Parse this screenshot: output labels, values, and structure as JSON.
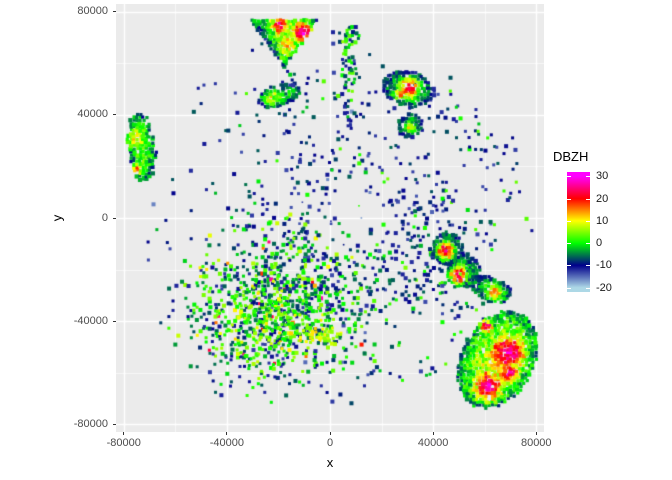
{
  "figure": {
    "bg": "#FFFFFF"
  },
  "panel": {
    "bg": "#EBEBEB",
    "grid_color": "#FFFFFF",
    "tick_text_color": "#4D4D4D",
    "title_text_color": "#000000"
  },
  "chart_data": {
    "type": "heatmap",
    "variable": "DBZH",
    "title": "",
    "xlabel": "x",
    "ylabel": "y",
    "xlim": [
      -83000,
      83000
    ],
    "ylim": [
      -83000,
      83000
    ],
    "x_ticks": [
      -80000,
      -40000,
      0,
      40000,
      80000
    ],
    "x_tick_labels": [
      "-80000",
      "-40000",
      "0",
      "40000",
      "80000"
    ],
    "y_ticks": [
      80000,
      40000,
      0,
      -40000,
      -80000
    ],
    "y_tick_labels": [
      "80000",
      "40000",
      "0",
      "-40000",
      "-80000"
    ],
    "minor_ticks": [
      -60000,
      -20000,
      20000,
      60000
    ],
    "grid": "on",
    "legend": {
      "title": "DBZH",
      "position": "right",
      "limits": [
        -22,
        32
      ],
      "ticks": [
        30,
        20,
        10,
        0,
        -10,
        -20
      ],
      "tick_labels": [
        "30",
        "20",
        "10",
        "0",
        "-10",
        "-20"
      ]
    },
    "colormap": [
      {
        "v": -20,
        "c": "#ADD8E6"
      },
      {
        "v": -10,
        "c": "#00008B"
      },
      {
        "v": 0,
        "c": "#00FF00"
      },
      {
        "v": 10,
        "c": "#FFFF00"
      },
      {
        "v": 20,
        "c": "#FF0000"
      },
      {
        "v": 30,
        "c": "#FF00FF"
      }
    ],
    "seed": 42,
    "cell_size_units": 1200,
    "scatter_fields": [
      {
        "name": "halo",
        "cx": 0,
        "cy": 0,
        "rx": 73000,
        "ry": 73000,
        "rot": 0,
        "dc": 0.028,
        "de": 0.015,
        "gamma": 1,
        "hole": 14000,
        "hole_f": 0.1,
        "vals": [
          [
            0.8,
            -14,
            -6
          ],
          [
            0.12,
            -3,
            4
          ],
          [
            0.08,
            -18,
            -14
          ]
        ]
      },
      {
        "name": "center-dots",
        "cx": 0,
        "cy": 0,
        "rx": 13000,
        "ry": 13000,
        "rot": 0,
        "dc": 0.05,
        "de": 0.03,
        "gamma": 1,
        "vals": [
          [
            0.55,
            -19,
            -13
          ],
          [
            0.3,
            -12,
            -7
          ],
          [
            0.15,
            -2,
            3
          ]
        ],
        "px": 1.6
      },
      {
        "name": "mid-ring",
        "cx": 12000,
        "cy": -6000,
        "rx": 52000,
        "ry": 38000,
        "rot": -10,
        "dc": 0.13,
        "de": 0.02,
        "gamma": 0.8,
        "hole": 16000,
        "hole_f": 0.15,
        "vals": [
          [
            0.82,
            -14,
            -5
          ],
          [
            0.18,
            -3,
            5
          ]
        ]
      },
      {
        "name": "top-scatter",
        "cx": 2000,
        "cy": 38000,
        "rx": 42000,
        "ry": 28000,
        "rot": 0,
        "dc": 0.06,
        "de": 0.01,
        "gamma": 1,
        "vals": [
          [
            0.88,
            -14,
            -6
          ],
          [
            0.12,
            -3,
            4
          ]
        ]
      },
      {
        "name": "ne-diagonal",
        "cx": 56000,
        "cy": 32000,
        "rx": 26000,
        "ry": 11000,
        "rot": -38,
        "dc": 0.14,
        "de": 0.02,
        "gamma": 1,
        "vals": [
          [
            0.8,
            -14,
            -6
          ],
          [
            0.2,
            -3,
            5
          ]
        ]
      },
      {
        "name": "right-field",
        "cx": 38000,
        "cy": -14000,
        "rx": 24000,
        "ry": 28000,
        "rot": 0,
        "dc": 0.17,
        "de": 0.03,
        "gamma": 1,
        "vals": [
          [
            0.82,
            -14,
            -5
          ],
          [
            0.18,
            -3,
            5
          ]
        ]
      },
      {
        "name": "big-cloud",
        "cx": -20000,
        "cy": -32000,
        "rx": 47000,
        "ry": 35000,
        "rot": 8,
        "dc": 0.72,
        "de": 0.03,
        "gamma": 1.3,
        "vals": [
          [
            0.5,
            -13,
            -4
          ],
          [
            0.4,
            -4,
            6
          ],
          [
            0.07,
            6,
            11
          ],
          [
            0.03,
            11,
            27
          ]
        ]
      },
      {
        "name": "cloud-green-core",
        "cx": -22000,
        "cy": -41000,
        "rx": 29000,
        "ry": 18000,
        "rot": 8,
        "dc": 0.5,
        "de": 0,
        "gamma": 1,
        "vals": [
          [
            0.72,
            -2,
            7
          ],
          [
            0.16,
            7,
            12
          ],
          [
            0.12,
            -10,
            -3
          ]
        ]
      },
      {
        "name": "yellow-streak",
        "cx": -4500,
        "cy": -45500,
        "rx": 10500,
        "ry": 4200,
        "rot": -8,
        "dc": 0.85,
        "de": 0.1,
        "gamma": 1,
        "vals": [
          [
            0.65,
            7,
            13
          ],
          [
            0.35,
            2,
            8
          ]
        ]
      },
      {
        "name": "bottom-fringe",
        "cx": -16000,
        "cy": -61000,
        "rx": 38000,
        "ry": 13000,
        "rot": 3,
        "dc": 0.12,
        "de": 0.02,
        "gamma": 1,
        "vals": [
          [
            0.6,
            -13,
            -5
          ],
          [
            0.4,
            -3,
            5
          ]
        ]
      },
      {
        "name": "se-specks",
        "cx": 28000,
        "cy": -58000,
        "rx": 18000,
        "ry": 11000,
        "rot": 0,
        "dc": 0.08,
        "de": 0.01,
        "gamma": 1,
        "vals": [
          [
            0.7,
            -13,
            -5
          ],
          [
            0.3,
            -3,
            4
          ]
        ]
      },
      {
        "name": "far-right-specks",
        "cx": 70000,
        "cy": 2000,
        "rx": 11000,
        "ry": 24000,
        "rot": 0,
        "dc": 0.06,
        "de": 0.01,
        "gamma": 1,
        "vals": [
          [
            0.55,
            -13,
            -6
          ],
          [
            0.45,
            -2,
            5
          ]
        ]
      },
      {
        "name": "streak-tail",
        "cx": 7200,
        "cy": 42000,
        "rx": 3200,
        "ry": 11000,
        "rot": 0,
        "dc": 0.3,
        "de": 0.05,
        "gamma": 1,
        "vals": [
          [
            0.75,
            -13,
            -6
          ],
          [
            0.25,
            -3,
            4
          ]
        ]
      },
      {
        "name": "streak-body",
        "cx": 7200,
        "cy": 61000,
        "rx": 2800,
        "ry": 13000,
        "rot": 3,
        "dc": 0.85,
        "de": 0.3,
        "gamma": 1,
        "vals": [
          [
            0.5,
            -12,
            -4
          ],
          [
            0.5,
            -4,
            6
          ]
        ]
      },
      {
        "name": "streak-top",
        "cx": 8000,
        "cy": 71000,
        "rx": 4200,
        "ry": 5200,
        "rot": 0,
        "dc": 0.7,
        "de": 0.2,
        "gamma": 1,
        "vals": [
          [
            0.55,
            -12,
            -4
          ],
          [
            0.45,
            -4,
            6
          ]
        ]
      },
      {
        "name": "se-storm-fringe",
        "cx": 52000,
        "cy": -38000,
        "rx": 9000,
        "ry": 12000,
        "rot": -30,
        "dc": 0.2,
        "de": 0.03,
        "gamma": 1,
        "vals": [
          [
            0.7,
            -13,
            -5
          ],
          [
            0.3,
            -2,
            5
          ]
        ]
      }
    ],
    "blobs": [
      {
        "name": "storm-north-triangle",
        "shape": "triangle",
        "cx": -17500,
        "top": 76500,
        "apex": 58500,
        "halfW": 12800,
        "base": 6,
        "edge": -8,
        "noise": 5,
        "fill": 0.97,
        "cores": [
          {
            "x": -10500,
            "y": 71800,
            "r": 5800,
            "peak": 31
          },
          {
            "x": -19800,
            "y": 74800,
            "r": 4200,
            "peak": 24
          },
          {
            "x": -16000,
            "y": 67500,
            "r": 5200,
            "peak": 14
          }
        ]
      },
      {
        "name": "storm-ne",
        "shape": "ellipse",
        "cx": 30500,
        "cy": 50000,
        "rx": 10500,
        "ry": 6800,
        "rot": -12,
        "base": 2,
        "edge": -9,
        "noise": 4,
        "fill": 0.94,
        "cores": [
          {
            "x": 30800,
            "y": 50500,
            "r": 5400,
            "peak": 24
          },
          {
            "x": 27500,
            "y": 48500,
            "r": 3000,
            "peak": 16
          }
        ]
      },
      {
        "name": "cell-ne-small",
        "shape": "ellipse",
        "cx": 31200,
        "cy": 35600,
        "rx": 5300,
        "ry": 4300,
        "rot": 20,
        "base": 0,
        "edge": -9,
        "noise": 4,
        "fill": 0.9,
        "cores": [
          {
            "x": 31400,
            "y": 35300,
            "r": 2800,
            "peak": 11
          }
        ]
      },
      {
        "name": "cell-west-edge",
        "shape": "ellipse",
        "cx": -73000,
        "cy": 27500,
        "rx": 5300,
        "ry": 13800,
        "rot": 6,
        "base": 4,
        "edge": -7,
        "noise": 5,
        "fill": 0.93,
        "cores": [
          {
            "x": -75500,
            "y": 31500,
            "r": 5200,
            "peak": 13
          },
          {
            "x": -75000,
            "y": 19000,
            "r": 3200,
            "peak": 19
          }
        ]
      },
      {
        "name": "cell-nw",
        "shape": "ellipse",
        "cx": -19800,
        "cy": 47500,
        "rx": 9000,
        "ry": 4100,
        "rot": 14,
        "base": 1,
        "edge": -9,
        "noise": 5,
        "fill": 0.9,
        "cores": [
          {
            "x": -22500,
            "y": 47000,
            "r": 4500,
            "peak": 8
          }
        ]
      },
      {
        "name": "storm-east-1",
        "shape": "ellipse",
        "cx": 45800,
        "cy": -12000,
        "rx": 6000,
        "ry": 6600,
        "rot": 10,
        "base": 0,
        "edge": -8,
        "noise": 4,
        "fill": 0.95,
        "cores": [
          {
            "x": 44800,
            "y": -12600,
            "r": 4500,
            "peak": 28
          }
        ]
      },
      {
        "name": "storm-east-2",
        "shape": "ellipse",
        "cx": 51500,
        "cy": -20800,
        "rx": 6800,
        "ry": 6600,
        "rot": -25,
        "base": 0,
        "edge": -8,
        "noise": 4,
        "fill": 0.95,
        "cores": [
          {
            "x": 49800,
            "y": -22000,
            "r": 4800,
            "peak": 29
          }
        ]
      },
      {
        "name": "cell-east-3",
        "shape": "ellipse",
        "cx": 62500,
        "cy": -27800,
        "rx": 8200,
        "ry": 4800,
        "rot": -18,
        "base": 1,
        "edge": -8,
        "noise": 4,
        "fill": 0.93,
        "cores": [
          {
            "x": 64000,
            "y": -28800,
            "r": 4300,
            "peak": 17
          }
        ]
      },
      {
        "name": "storm-se",
        "shape": "ellipse",
        "cx": 65000,
        "cy": -55000,
        "rx": 14000,
        "ry": 20000,
        "rot": -28,
        "base": 10,
        "edge": -4,
        "noise": 5,
        "fill": 0.97,
        "cores": [
          {
            "x": 69800,
            "y": -52000,
            "r": 8000,
            "peak": 31
          },
          {
            "x": 61500,
            "y": -65500,
            "r": 7000,
            "peak": 31
          },
          {
            "x": 60800,
            "y": -41500,
            "r": 3400,
            "peak": 30
          },
          {
            "x": 70000,
            "y": -60000,
            "r": 5000,
            "peak": 27
          }
        ]
      }
    ]
  }
}
